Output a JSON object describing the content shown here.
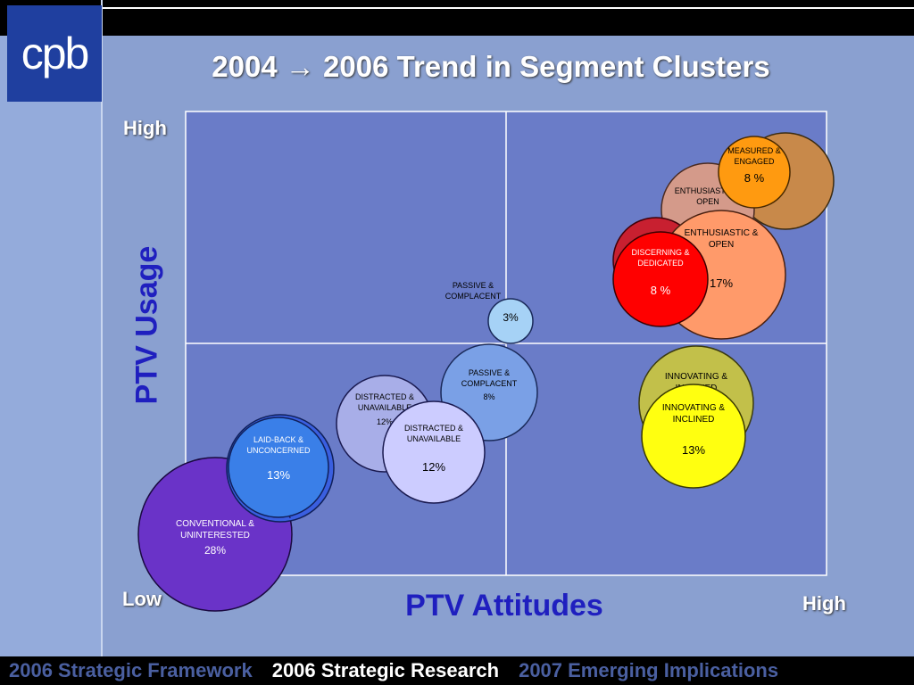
{
  "slide": {
    "logo_text": "cpb",
    "title": "2004 → 2006 Trend in Segment Clusters"
  },
  "axes": {
    "y_label": "PTV Usage",
    "x_label": "PTV Attitudes",
    "y_high": "High",
    "origin_low": "Low",
    "x_high": "High"
  },
  "footer": {
    "items": [
      "2006 Strategic Framework",
      "2006 Strategic Research",
      "2007 Emerging Implications"
    ],
    "active_index": 1
  },
  "colors": {
    "quadrant_fill": "#6a7cc8",
    "axis_line": "#ffffff",
    "label_color": "#1f1fbf",
    "footer_active": "#ffffff",
    "footer_inactive": "#4a5fa0"
  },
  "chart_data": {
    "type": "bubble",
    "quadrants": 4,
    "series": [
      {
        "name": "2004",
        "bubbles": [
          {
            "label": "MEASURED & ENGAGED",
            "value": ""
          },
          {
            "label": "ENTHUSIASTIC & OPEN",
            "value": ""
          },
          {
            "label": "DISCERNING & DEDICATED",
            "value": ""
          },
          {
            "label": "INNOVATING & INCLINED",
            "value": ""
          },
          {
            "label": "PASSIVE & COMPLACENT",
            "value": "8%"
          },
          {
            "label": "DISTRACTED & UNAVAILABLE",
            "value": "12%"
          },
          {
            "label": "LAID-BACK & UNCONCERNED",
            "value": ""
          },
          {
            "label": "CONVENTIONAL & UNINTERESTED",
            "value": ""
          }
        ]
      },
      {
        "name": "2006",
        "bubbles": [
          {
            "label": "MEASURED & ENGAGED",
            "value": "8 %"
          },
          {
            "label": "ENTHUSIASTIC & OPEN",
            "value": "17%"
          },
          {
            "label": "DISCERNING & DEDICATED",
            "value": "8 %"
          },
          {
            "label": "INNOVATING & INCLINED",
            "value": "13%"
          },
          {
            "label": "PASSIVE & COMPLACENT",
            "value": "3%"
          },
          {
            "label": "DISTRACTED & UNAVAILABLE",
            "value": "12%"
          },
          {
            "label": "LAID-BACK & UNCONCERNED",
            "value": "13%"
          },
          {
            "label": "CONVENTIONAL & UNINTERESTED",
            "value": "28%"
          }
        ]
      }
    ]
  }
}
